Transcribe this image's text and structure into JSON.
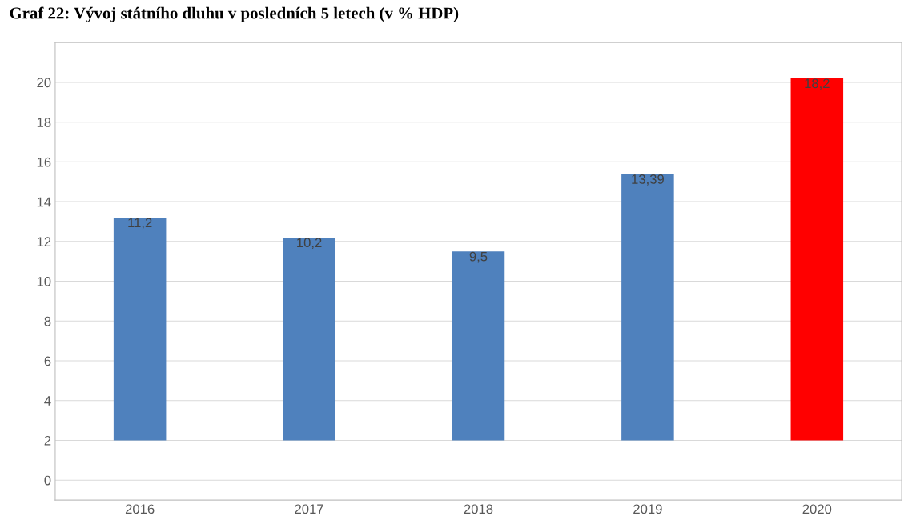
{
  "chart_data": {
    "type": "bar",
    "title": "Graf 22: Vývoj státního dluhu v posledních 5 letech (v % HDP)",
    "categories": [
      "2016",
      "2017",
      "2018",
      "2019",
      "2020"
    ],
    "values": [
      11.2,
      10.2,
      9.5,
      13.39,
      18.2
    ],
    "base": [
      2,
      2,
      2,
      2,
      2
    ],
    "value_labels": [
      "11,2",
      "10,2",
      "9,5",
      "13,39",
      "18,2"
    ],
    "colors": [
      "#4f81bd",
      "#4f81bd",
      "#4f81bd",
      "#4f81bd",
      "#ff0000"
    ],
    "ylim": [
      -1,
      22
    ],
    "yticks": [
      0,
      2,
      4,
      6,
      8,
      10,
      12,
      14,
      16,
      18,
      20
    ],
    "grid": "y",
    "legend": false
  }
}
